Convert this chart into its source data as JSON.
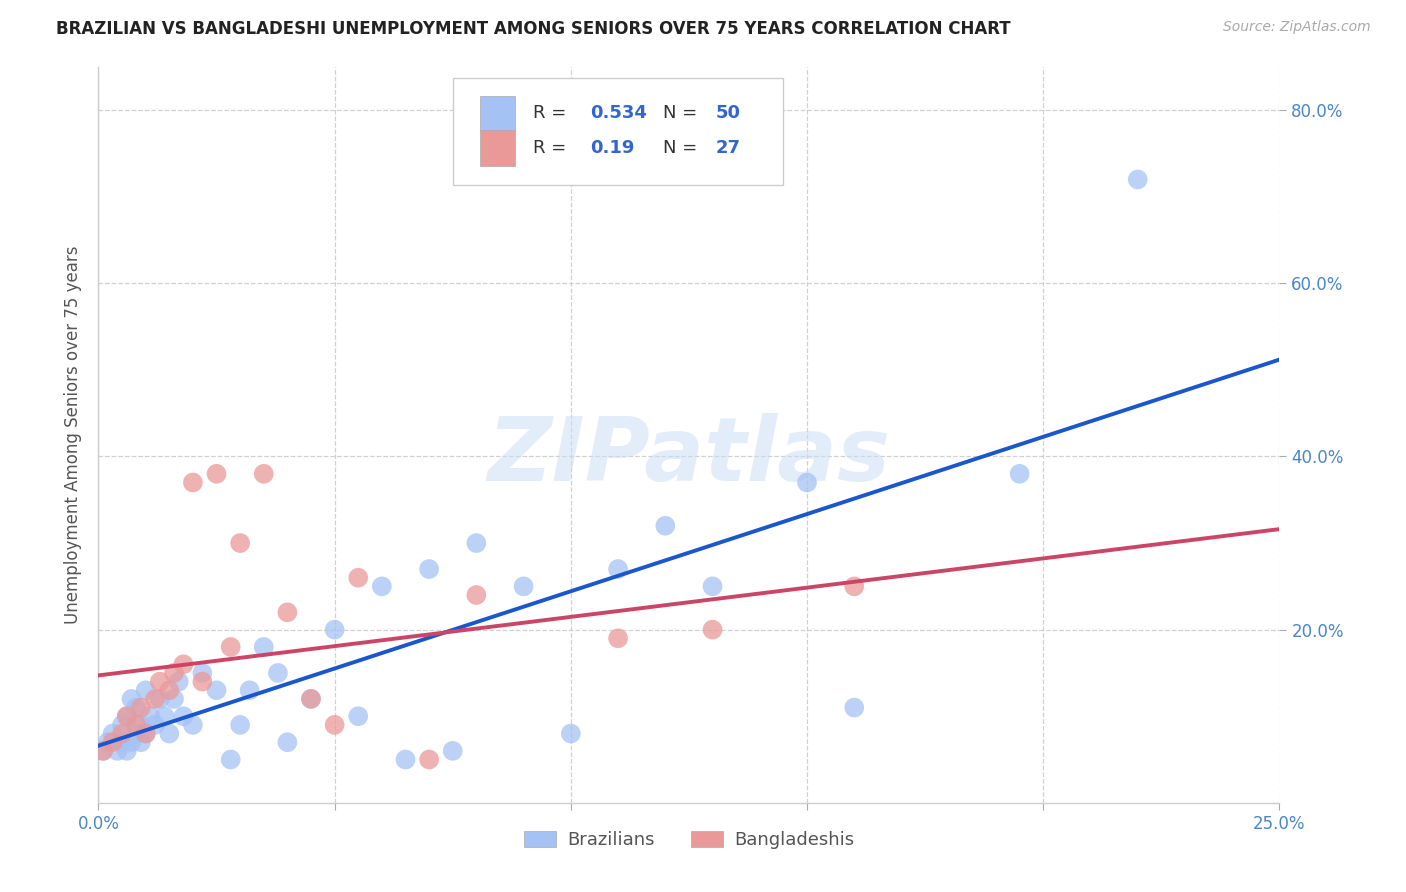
{
  "title": "BRAZILIAN VS BANGLADESHI UNEMPLOYMENT AMONG SENIORS OVER 75 YEARS CORRELATION CHART",
  "source": "Source: ZipAtlas.com",
  "ylabel": "Unemployment Among Seniors over 75 years",
  "xlim": [
    0.0,
    0.25
  ],
  "ylim": [
    0.0,
    0.85
  ],
  "xticks": [
    0.0,
    0.05,
    0.1,
    0.15,
    0.2,
    0.25
  ],
  "yticks": [
    0.2,
    0.4,
    0.6,
    0.8
  ],
  "xtick_labels": [
    "0.0%",
    "",
    "",
    "",
    "",
    "25.0%"
  ],
  "ytick_labels": [
    "20.0%",
    "40.0%",
    "60.0%",
    "80.0%"
  ],
  "brazil_R": 0.534,
  "brazil_N": 50,
  "bangla_R": 0.19,
  "bangla_N": 27,
  "brazil_color": "#a4c2f4",
  "bangla_color": "#ea9999",
  "brazil_line_color": "#1a56cc",
  "bangla_line_color": "#cc4466",
  "brazil_x": [
    0.001,
    0.002,
    0.003,
    0.004,
    0.005,
    0.005,
    0.006,
    0.006,
    0.007,
    0.007,
    0.008,
    0.008,
    0.009,
    0.009,
    0.01,
    0.01,
    0.011,
    0.012,
    0.013,
    0.014,
    0.015,
    0.016,
    0.017,
    0.018,
    0.02,
    0.022,
    0.025,
    0.028,
    0.03,
    0.032,
    0.035,
    0.038,
    0.04,
    0.045,
    0.05,
    0.055,
    0.06,
    0.065,
    0.07,
    0.075,
    0.08,
    0.09,
    0.1,
    0.11,
    0.12,
    0.13,
    0.15,
    0.16,
    0.195,
    0.22
  ],
  "brazil_y": [
    0.06,
    0.07,
    0.08,
    0.06,
    0.07,
    0.09,
    0.06,
    0.1,
    0.07,
    0.12,
    0.08,
    0.11,
    0.07,
    0.09,
    0.08,
    0.13,
    0.1,
    0.09,
    0.12,
    0.1,
    0.08,
    0.12,
    0.14,
    0.1,
    0.09,
    0.15,
    0.13,
    0.05,
    0.09,
    0.13,
    0.18,
    0.15,
    0.07,
    0.12,
    0.2,
    0.1,
    0.25,
    0.05,
    0.27,
    0.06,
    0.3,
    0.25,
    0.08,
    0.27,
    0.32,
    0.25,
    0.37,
    0.11,
    0.38,
    0.72
  ],
  "bangla_x": [
    0.001,
    0.003,
    0.005,
    0.006,
    0.008,
    0.009,
    0.01,
    0.012,
    0.013,
    0.015,
    0.016,
    0.018,
    0.02,
    0.022,
    0.025,
    0.028,
    0.03,
    0.035,
    0.04,
    0.045,
    0.05,
    0.055,
    0.07,
    0.08,
    0.11,
    0.13,
    0.16
  ],
  "bangla_y": [
    0.06,
    0.07,
    0.08,
    0.1,
    0.09,
    0.11,
    0.08,
    0.12,
    0.14,
    0.13,
    0.15,
    0.16,
    0.37,
    0.14,
    0.38,
    0.18,
    0.3,
    0.38,
    0.22,
    0.12,
    0.09,
    0.26,
    0.05,
    0.24,
    0.19,
    0.2,
    0.25
  ],
  "watermark": "ZIPatlas",
  "background_color": "#ffffff",
  "grid_color": "#cccccc",
  "r_color": "#3366cc",
  "n_color": "#3366cc",
  "text_color": "#333333",
  "tick_color": "#4a86c8",
  "title_fontsize": 12,
  "source_fontsize": 10,
  "tick_fontsize": 12,
  "legend_fontsize": 13
}
